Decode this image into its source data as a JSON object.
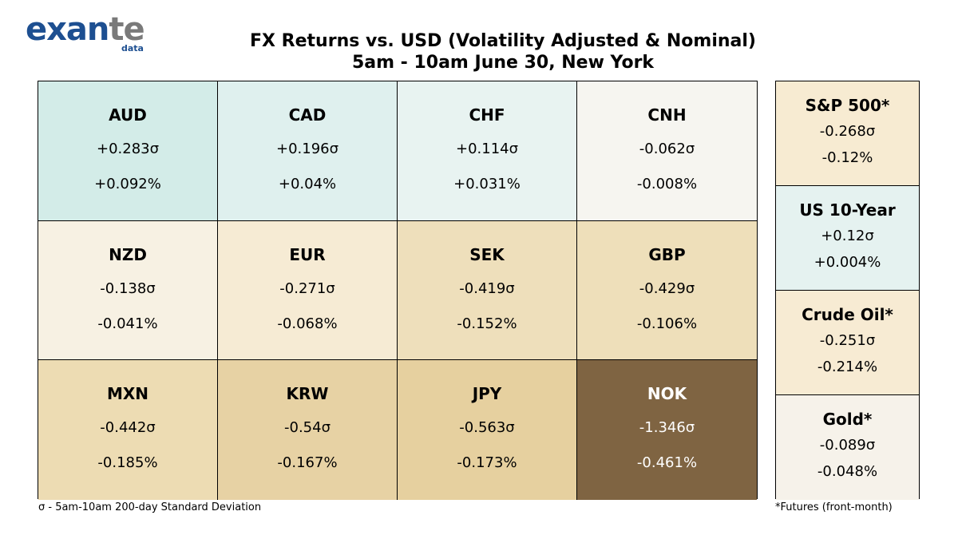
{
  "logo": {
    "word_ex": "exan",
    "word_te": "te",
    "sub": "data"
  },
  "title_line1": "FX Returns vs. USD (Volatility Adjusted & Nominal)",
  "title_line2": "5am - 10am June 30, New York",
  "chart_data": {
    "type": "table",
    "title": "FX Returns vs. USD (Volatility Adjusted & Nominal)",
    "subtitle": "5am - 10am June 30, New York",
    "currencies": [
      {
        "name": "AUD",
        "sigma": "+0.283σ",
        "pct": "+0.092%",
        "color": "#d3ece8",
        "text_color": "#000000"
      },
      {
        "name": "CAD",
        "sigma": "+0.196σ",
        "pct": "+0.04%",
        "color": "#dff0ee",
        "text_color": "#000000"
      },
      {
        "name": "CHF",
        "sigma": "+0.114σ",
        "pct": "+0.031%",
        "color": "#e8f3f1",
        "text_color": "#000000"
      },
      {
        "name": "CNH",
        "sigma": "-0.062σ",
        "pct": "-0.008%",
        "color": "#f6f5f0",
        "text_color": "#000000"
      },
      {
        "name": "NZD",
        "sigma": "-0.138σ",
        "pct": "-0.041%",
        "color": "#f7f1e3",
        "text_color": "#000000"
      },
      {
        "name": "EUR",
        "sigma": "-0.271σ",
        "pct": "-0.068%",
        "color": "#f6ebd4",
        "text_color": "#000000"
      },
      {
        "name": "SEK",
        "sigma": "-0.419σ",
        "pct": "-0.152%",
        "color": "#eedfbb",
        "text_color": "#000000"
      },
      {
        "name": "GBP",
        "sigma": "-0.429σ",
        "pct": "-0.106%",
        "color": "#eedfba",
        "text_color": "#000000"
      },
      {
        "name": "MXN",
        "sigma": "-0.442σ",
        "pct": "-0.185%",
        "color": "#eddcb3",
        "text_color": "#000000"
      },
      {
        "name": "KRW",
        "sigma": "-0.54σ",
        "pct": "-0.167%",
        "color": "#e7d2a4",
        "text_color": "#000000"
      },
      {
        "name": "JPY",
        "sigma": "-0.563σ",
        "pct": "-0.173%",
        "color": "#e6d09f",
        "text_color": "#000000"
      },
      {
        "name": "NOK",
        "sigma": "-1.346σ",
        "pct": "-0.461%",
        "color": "#7f6442",
        "text_color": "#ffffff"
      }
    ],
    "assets": [
      {
        "name": "S&P 500*",
        "sigma": "-0.268σ",
        "pct": "-0.12%",
        "color": "#f7ebd2"
      },
      {
        "name": "US 10-Year",
        "sigma": "+0.12σ",
        "pct": "+0.004%",
        "color": "#e5f2f0"
      },
      {
        "name": "Crude Oil*",
        "sigma": "-0.251σ",
        "pct": "-0.214%",
        "color": "#f7ebd3"
      },
      {
        "name": "Gold*",
        "sigma": "-0.089σ",
        "pct": "-0.048%",
        "color": "#f6f2ea"
      }
    ]
  },
  "footnote_left": "σ - 5am-10am 200-day Standard Deviation",
  "footnote_right": "*Futures (front-month)"
}
